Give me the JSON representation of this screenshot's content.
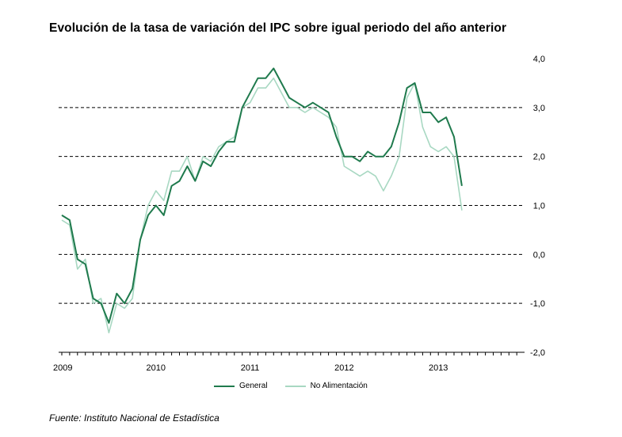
{
  "chart_data": {
    "type": "line",
    "title": "Evolución de la tasa de variación del IPC sobre igual  periodo del año anterior",
    "source": "Fuente: Instituto Nacional de Estadística",
    "ylim": [
      -2.0,
      4.0
    ],
    "y_ticks": [
      -2.0,
      -1.0,
      0.0,
      1.0,
      2.0,
      3.0,
      4.0
    ],
    "y_tick_labels": [
      "-2,0",
      "-1,0",
      "0,0",
      "1,0",
      "2,0",
      "3,0",
      "4,0"
    ],
    "x_ticks": [
      {
        "label": "2009",
        "month_index": 0
      },
      {
        "label": "2010",
        "month_index": 12
      },
      {
        "label": "2011",
        "month_index": 24
      },
      {
        "label": "2012",
        "month_index": 36
      },
      {
        "label": "2013",
        "month_index": 48
      }
    ],
    "grid": "dashed horizontal at 3,0 / 2,0 / 1,0 / 0,0 / -1,0",
    "legend_position": "bottom",
    "series": [
      {
        "name": "General",
        "color": "#1f7a4d",
        "values": [
          0.8,
          0.7,
          -0.1,
          -0.2,
          -0.9,
          -1.0,
          -1.4,
          -0.8,
          -1.0,
          -0.7,
          0.3,
          0.8,
          1.0,
          0.8,
          1.4,
          1.5,
          1.8,
          1.5,
          1.9,
          1.8,
          2.1,
          2.3,
          2.3,
          3.0,
          3.3,
          3.6,
          3.6,
          3.8,
          3.5,
          3.2,
          3.1,
          3.0,
          3.1,
          3.0,
          2.9,
          2.4,
          2.0,
          2.0,
          1.9,
          2.1,
          2.0,
          2.0,
          2.2,
          2.7,
          3.4,
          3.5,
          2.9,
          2.9,
          2.7,
          2.8,
          2.4,
          1.4
        ],
        "values_note": "read from axis, approximate"
      },
      {
        "name": "No Alimentación",
        "color": "#a8d8c2",
        "values": [
          0.7,
          0.6,
          -0.3,
          -0.1,
          -1.0,
          -0.9,
          -1.6,
          -1.0,
          -1.1,
          -0.9,
          0.3,
          1.0,
          1.3,
          1.1,
          1.7,
          1.7,
          2.0,
          1.5,
          2.0,
          1.9,
          2.2,
          2.3,
          2.4,
          3.0,
          3.1,
          3.4,
          3.4,
          3.6,
          3.3,
          3.0,
          3.0,
          2.9,
          3.0,
          2.9,
          2.8,
          2.6,
          1.8,
          1.7,
          1.6,
          1.7,
          1.6,
          1.3,
          1.6,
          2.0,
          3.2,
          3.5,
          2.6,
          2.2,
          2.1,
          2.2,
          2.0,
          0.9
        ]
      }
    ]
  }
}
